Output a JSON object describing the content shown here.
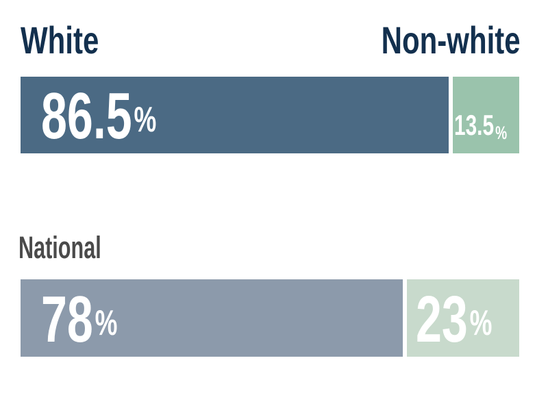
{
  "chart_data": {
    "type": "bar",
    "orientation": "horizontal",
    "stacked": true,
    "unit": "%",
    "column_headers": [
      "White",
      "Non-white"
    ],
    "rows": [
      {
        "label": "",
        "White": 86.5,
        "Non-white": 13.5
      },
      {
        "label": "National",
        "White": 78,
        "Non-white": 23
      }
    ],
    "xlim": [
      0,
      100
    ],
    "grid": false,
    "legend_position": "column headers above bars",
    "value_labels": "inside segments, bottom-left, white text"
  },
  "colors": {
    "header_text": "#13304e",
    "national_label_text": "#4a4a4a",
    "value_text": "#ffffff",
    "background": "#ffffff",
    "bar_top_white": "#4b6a84",
    "bar_top_nonwhite": "#9ac3ac",
    "bar_national_white": "#8c9aab",
    "bar_national_nonwhite": "#c8dacc"
  }
}
